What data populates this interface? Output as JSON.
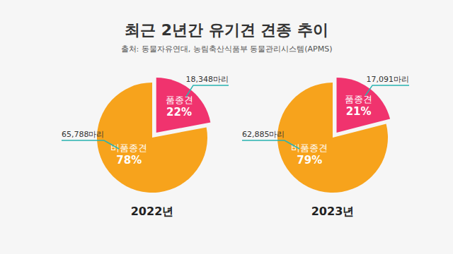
{
  "title": "최근 2년간 유기견 견종 추이",
  "subtitle": "출처: 동물자유연대, 농림축산식품부 동물관리시스템(APMS)",
  "chart_data": [
    {
      "type": "pie",
      "title": "2022년",
      "categories": [
        "품종견",
        "비품종견"
      ],
      "values": [
        22,
        78
      ],
      "value_labels": [
        "22%",
        "78%"
      ],
      "count_labels": [
        "18,348마리",
        "65,788마리"
      ],
      "colors": [
        "#f0336e",
        "#f7a31c"
      ],
      "data_labels": true
    },
    {
      "type": "pie",
      "title": "2023년",
      "categories": [
        "품종견",
        "비품종견"
      ],
      "values": [
        21,
        79
      ],
      "value_labels": [
        "21%",
        "79%"
      ],
      "count_labels": [
        "17,091마리",
        "62,885마리"
      ],
      "colors": [
        "#f0336e",
        "#f7a31c"
      ],
      "data_labels": true
    }
  ]
}
